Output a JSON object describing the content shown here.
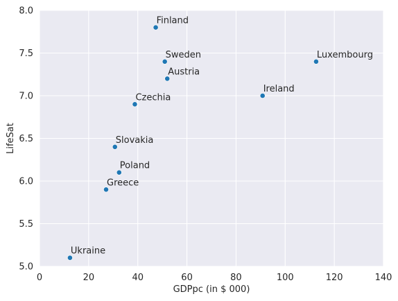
{
  "chart_data": {
    "type": "scatter",
    "title": "",
    "xlabel": "GDPpc (in $ 000)",
    "ylabel": "LifeSat",
    "xlim": [
      0,
      140
    ],
    "ylim": [
      5.0,
      8.0
    ],
    "xticks": [
      0,
      20,
      40,
      60,
      80,
      100,
      120,
      140
    ],
    "yticks": [
      5.0,
      5.5,
      6.0,
      6.5,
      7.0,
      7.5,
      8.0
    ],
    "xtick_labels": [
      "0",
      "20",
      "40",
      "60",
      "80",
      "100",
      "120",
      "140"
    ],
    "ytick_labels": [
      "5.0",
      "5.5",
      "6.0",
      "6.5",
      "7.0",
      "7.5",
      "8.0"
    ],
    "grid": true,
    "background": "#eaeaf2",
    "point_color": "#1f77b4",
    "points": [
      {
        "label": "Finland",
        "x": 47.3,
        "y": 7.8
      },
      {
        "label": "Sweden",
        "x": 51.0,
        "y": 7.4
      },
      {
        "label": "Luxembourg",
        "x": 112.6,
        "y": 7.4
      },
      {
        "label": "Austria",
        "x": 52.0,
        "y": 7.2
      },
      {
        "label": "Ireland",
        "x": 90.8,
        "y": 7.0
      },
      {
        "label": "Czechia",
        "x": 38.8,
        "y": 6.9
      },
      {
        "label": "Slovakia",
        "x": 30.7,
        "y": 6.4
      },
      {
        "label": "Poland",
        "x": 32.4,
        "y": 6.1
      },
      {
        "label": "Greece",
        "x": 27.1,
        "y": 5.9
      },
      {
        "label": "Ukraine",
        "x": 12.4,
        "y": 5.1
      }
    ]
  }
}
